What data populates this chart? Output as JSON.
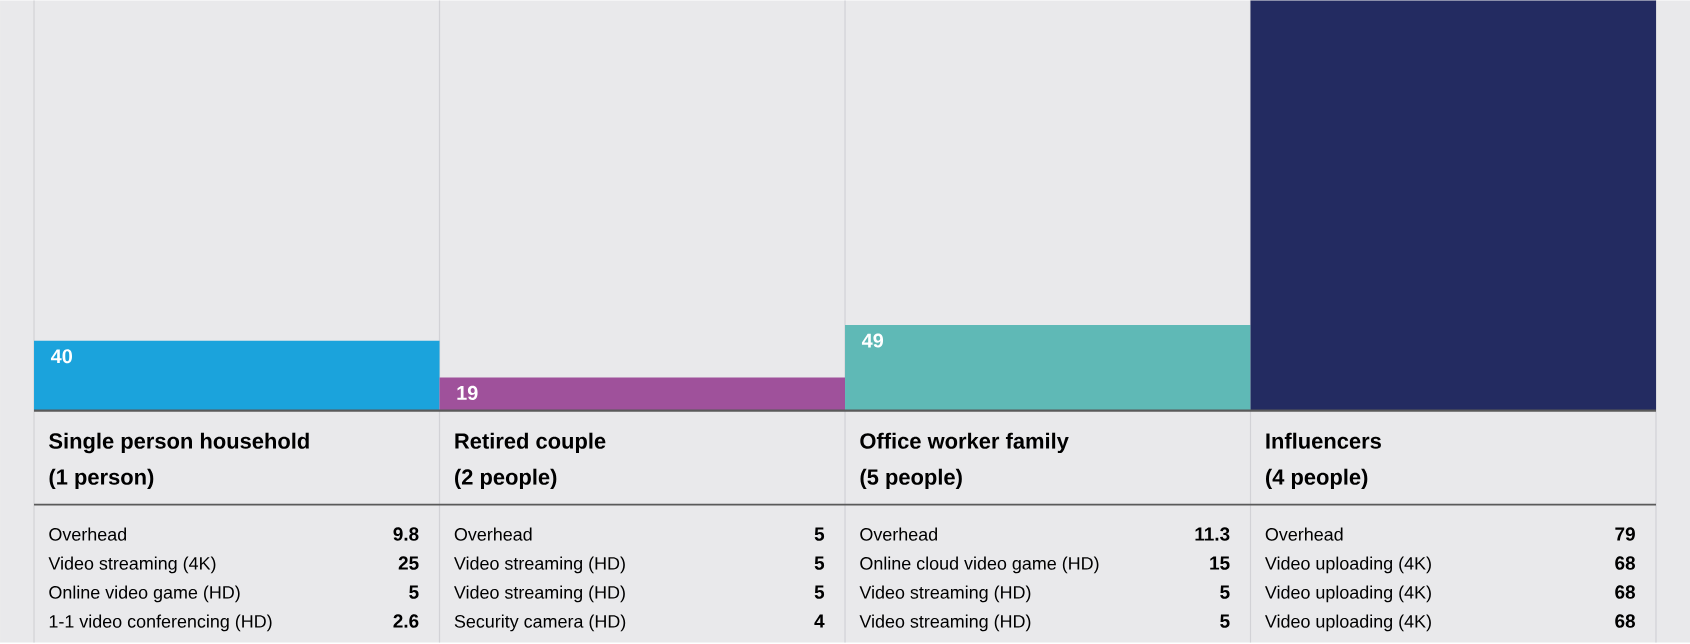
{
  "chart_data": {
    "type": "bar",
    "categories": [
      "Single person household",
      "Retired couple",
      "Office worker family",
      "Influencers"
    ],
    "values": [
      40,
      19,
      49,
      235
    ],
    "colors": [
      "#1ba3dc",
      "#9f519b",
      "#5fb9b6",
      "#232b61"
    ],
    "value_labels": [
      "40",
      "19",
      "49",
      null
    ],
    "annotations": [
      "(1 person)",
      "Overhead",
      "9.8",
      "Video streaming (4K)",
      "25",
      "Online video game (HD)",
      "5",
      "1-1 video conferencing (HD)",
      "2.6",
      "(2 people)",
      "Overhead",
      "5",
      "Video streaming (HD)",
      "5",
      "Video streaming (HD)",
      "5",
      "Security camera (HD)",
      "4",
      "(5 people)",
      "Overhead",
      "11.3",
      "Online cloud video game (HD)",
      "15",
      "Video streaming (HD)",
      "5",
      "Video streaming (HD)",
      "5",
      "(4 people)",
      "Overhead",
      "79",
      "Video uploading (4K)",
      "68",
      "Video uploading (4K)",
      "68",
      "Video uploading (4K)",
      "68"
    ]
  }
}
